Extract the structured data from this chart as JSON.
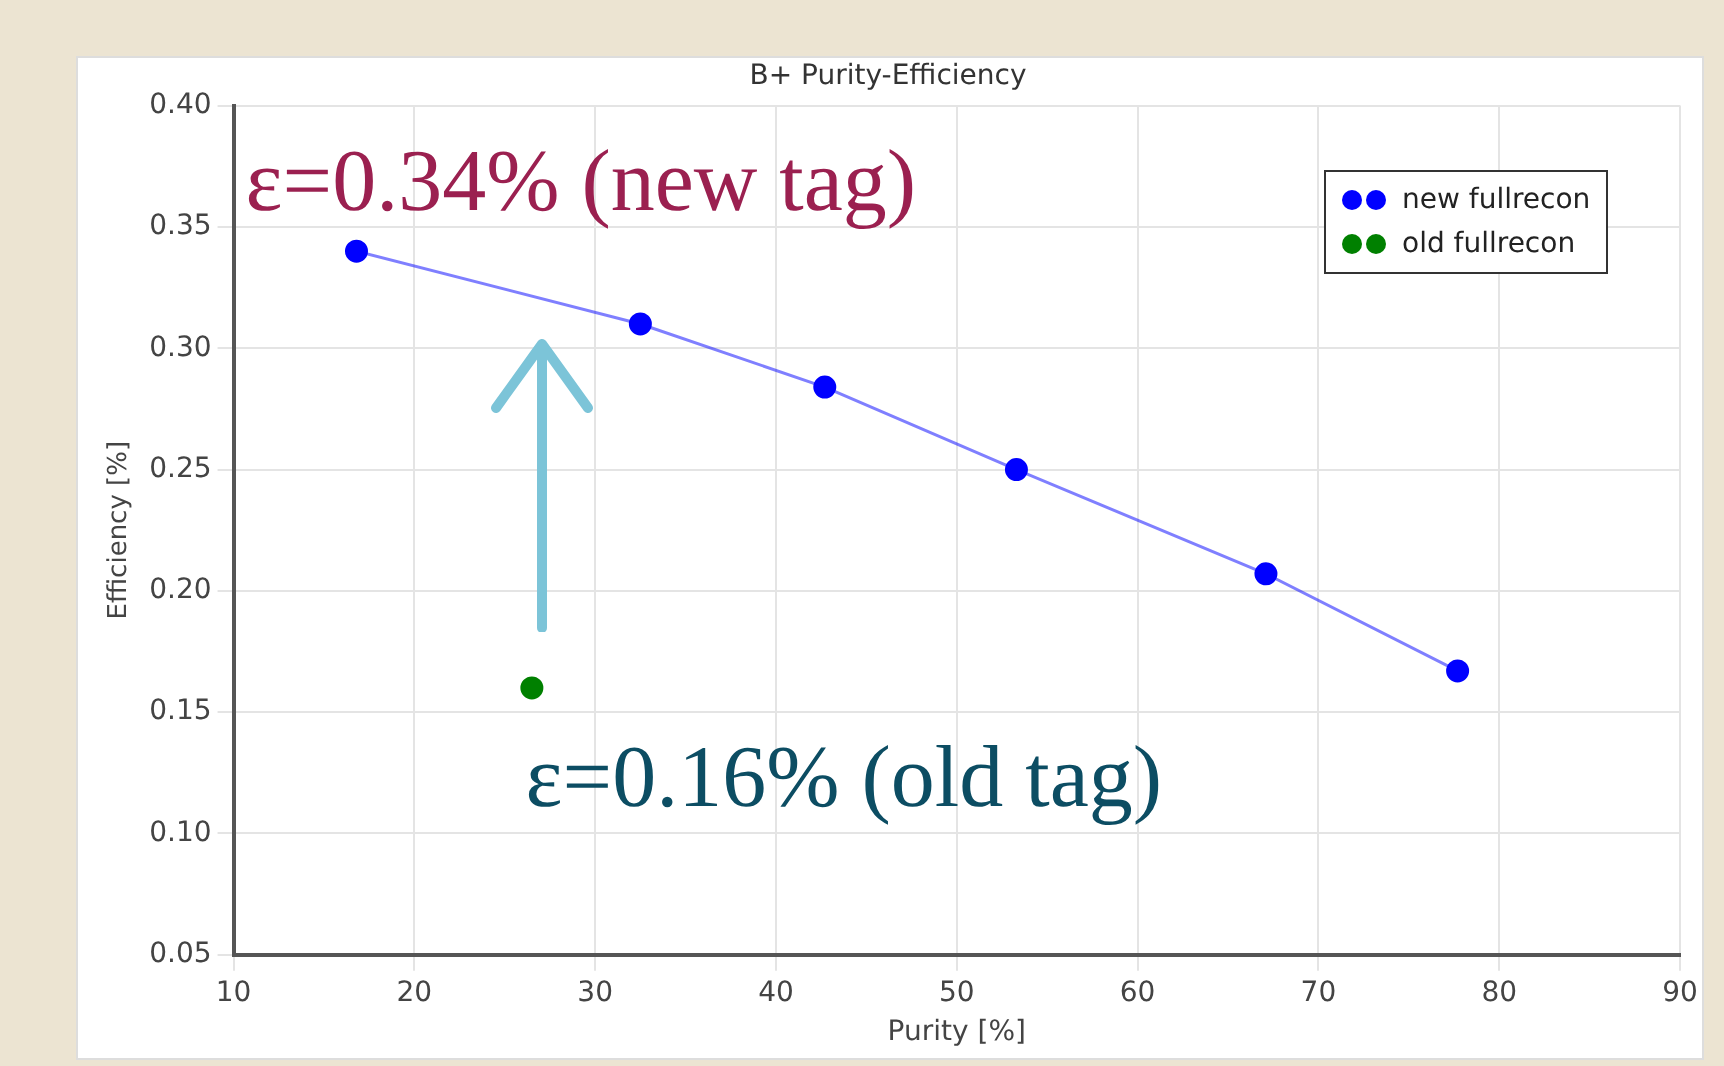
{
  "chart_data": {
    "type": "line",
    "title": "B+ Purity-Efficiency",
    "xlabel": "Purity [%]",
    "ylabel": "Efficiency [%]",
    "series": [
      {
        "name": "new fullrecon",
        "color": "#0000ff",
        "x": [
          16.8,
          32.5,
          42.7,
          53.3,
          67.1,
          77.7
        ],
        "values": [
          0.34,
          0.31,
          0.284,
          0.25,
          0.207,
          0.167
        ]
      },
      {
        "name": "old fullrecon",
        "color": "#008000",
        "x": [
          26.5
        ],
        "values": [
          0.16
        ]
      }
    ],
    "xlim": [
      10,
      90
    ],
    "xticks": [
      10,
      20,
      30,
      40,
      50,
      60,
      70,
      80,
      90
    ],
    "ylim": [
      0.05,
      0.4
    ],
    "yticks": [
      0.05,
      {
        "value": 0.1,
        "label": "0.10"
      },
      0.15,
      {
        "value": 0.2,
        "label": "0.20"
      },
      0.25,
      {
        "value": 0.3,
        "label": "0.30"
      },
      0.35,
      {
        "value": 0.4,
        "label": "0.40"
      }
    ],
    "grid": true,
    "legend": "top right",
    "marker": "circle",
    "annotations": [
      "ε=0.34% (new tag)",
      "ε=0.16% (old tag)"
    ]
  }
}
